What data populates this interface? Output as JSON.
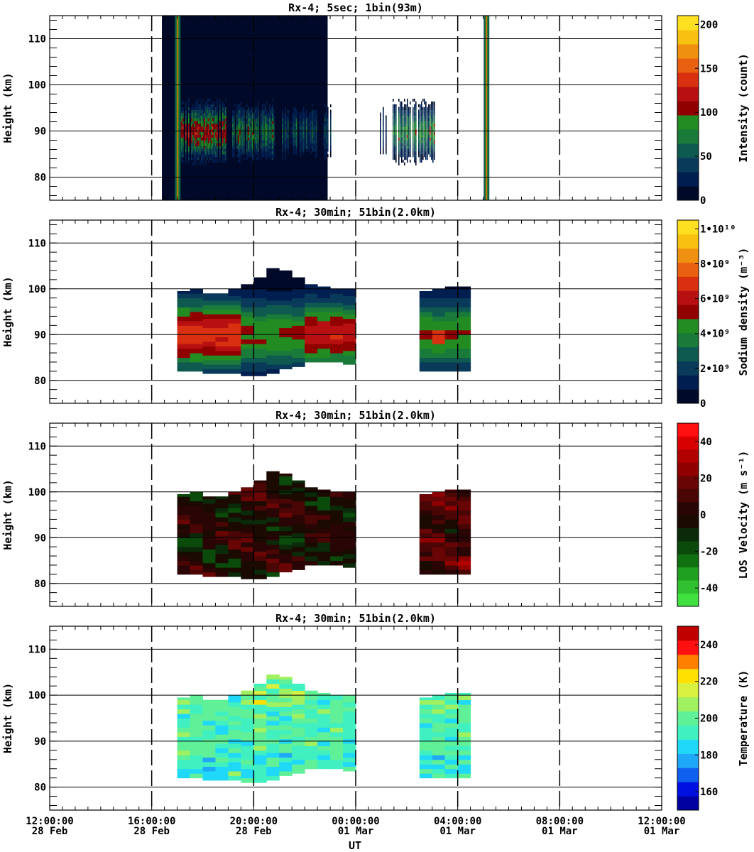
{
  "chart_data": [
    {
      "type": "heatmap",
      "title": "Rx-4;  5sec; 1bin(93m)",
      "ylabel": "Height (km)",
      "ylim": [
        75,
        115
      ],
      "yticks": [
        "80",
        "90",
        "100",
        "110"
      ],
      "colorbar": {
        "label": "Intensity (count)",
        "ticks": [
          "0",
          "50",
          "100",
          "150",
          "200"
        ],
        "range": [
          0,
          210
        ],
        "colors": [
          "#000a28",
          "#001e50",
          "#0a3a5a",
          "#0f5a50",
          "#1a7a3a",
          "#228b22",
          "#900000",
          "#b81010",
          "#d83010",
          "#e86010",
          "#f09010",
          "#f8c010",
          "#ffe020"
        ]
      },
      "data_window_hours": [
        16.4,
        22.9
      ],
      "layer_segments_hours": [
        [
          17.0,
          18.9
        ],
        [
          19.1,
          20.8
        ],
        [
          21.0,
          23.0
        ],
        [
          24.9,
          25.2
        ],
        [
          25.4,
          27.1
        ]
      ],
      "layer_height_km": [
        82,
        98
      ]
    },
    {
      "type": "heatmap",
      "title": "Rx-4; 30min; 51bin(2.0km)",
      "ylabel": "Height (km)",
      "ylim": [
        75,
        115
      ],
      "yticks": [
        "80",
        "90",
        "100",
        "110"
      ],
      "colorbar": {
        "label": "Sodium density (m⁻³)",
        "ticks": [
          "0",
          "2•10⁹",
          "4•10⁹",
          "6•10⁹",
          "8•10⁹",
          "1•10¹⁰"
        ],
        "range": [
          0,
          10500000000.0
        ],
        "colors": [
          "#000a28",
          "#001e50",
          "#0a3a5a",
          "#0f5a50",
          "#1a7a3a",
          "#228b22",
          "#900000",
          "#b81010",
          "#d83010",
          "#e86010",
          "#f09010",
          "#f8c010",
          "#ffe020"
        ]
      },
      "columns": [
        {
          "t": 17.0,
          "top": 99.5,
          "bottom": 82
        },
        {
          "t": 17.5,
          "top": 100,
          "bottom": 82
        },
        {
          "t": 18.0,
          "top": 99,
          "bottom": 81.5
        },
        {
          "t": 18.5,
          "top": 99,
          "bottom": 81.5
        },
        {
          "t": 19.0,
          "top": 100,
          "bottom": 81.5
        },
        {
          "t": 19.5,
          "top": 101,
          "bottom": 81
        },
        {
          "t": 20.0,
          "top": 102.5,
          "bottom": 81
        },
        {
          "t": 20.5,
          "top": 104.5,
          "bottom": 81.5
        },
        {
          "t": 21.0,
          "top": 104,
          "bottom": 82.5
        },
        {
          "t": 21.5,
          "top": 102.5,
          "bottom": 83
        },
        {
          "t": 22.0,
          "top": 101,
          "bottom": 84
        },
        {
          "t": 22.5,
          "top": 100.5,
          "bottom": 84
        },
        {
          "t": 23.0,
          "top": 100,
          "bottom": 84
        },
        {
          "t": 23.5,
          "top": 100,
          "bottom": 83.5
        },
        {
          "t": 26.5,
          "top": 99.5,
          "bottom": 82
        },
        {
          "t": 27.0,
          "top": 100,
          "bottom": 82
        },
        {
          "t": 27.5,
          "top": 100.5,
          "bottom": 82
        },
        {
          "t": 28.0,
          "top": 100.5,
          "bottom": 82
        }
      ]
    },
    {
      "type": "heatmap",
      "title": "Rx-4; 30min; 51bin(2.0km)",
      "ylabel": "Height (km)",
      "ylim": [
        75,
        115
      ],
      "yticks": [
        "80",
        "90",
        "100",
        "110"
      ],
      "colorbar": {
        "label": "LOS Velocity (m s⁻¹)",
        "ticks": [
          "-40",
          "-20",
          "0",
          "20",
          "40"
        ],
        "range": [
          -50,
          50
        ],
        "colors": [
          "#40e040",
          "#30c030",
          "#20a020",
          "#107010",
          "#0a4a0a",
          "#0a2a0a",
          "#1a0a00",
          "#2a0505",
          "#4a0505",
          "#6a0505",
          "#900000",
          "#b00000",
          "#d80000",
          "#ff1010"
        ]
      }
    },
    {
      "type": "heatmap",
      "title": "Rx-4; 30min; 51bin(2.0km)",
      "ylabel": "Height (km)",
      "ylim": [
        75,
        115
      ],
      "yticks": [
        "80",
        "90",
        "100",
        "110"
      ],
      "colorbar": {
        "label": "Temperature (K)",
        "ticks": [
          "160",
          "180",
          "200",
          "220",
          "240"
        ],
        "range": [
          150,
          250
        ],
        "colors": [
          "#0000a0",
          "#0010e0",
          "#1060f0",
          "#20a8f8",
          "#20d8f8",
          "#40f0c0",
          "#60f098",
          "#a0f060",
          "#d8f040",
          "#ffe000",
          "#ff8000",
          "#ff1010",
          "#c00000"
        ]
      }
    }
  ],
  "xaxis": {
    "label": "UT",
    "range_hours": [
      12,
      36
    ],
    "ticks": [
      {
        "h": 12,
        "time": "12:00:00",
        "date": "28 Feb"
      },
      {
        "h": 16,
        "time": "16:00:00",
        "date": "28 Feb"
      },
      {
        "h": 20,
        "time": "20:00:00",
        "date": "28 Feb"
      },
      {
        "h": 24,
        "time": "00:00:00",
        "date": "01 Mar"
      },
      {
        "h": 28,
        "time": "04:00:00",
        "date": "01 Mar"
      },
      {
        "h": 32,
        "time": "08:00:00",
        "date": "01 Mar"
      },
      {
        "h": 36,
        "time": "12:00:00",
        "date": "01 Mar"
      }
    ]
  }
}
